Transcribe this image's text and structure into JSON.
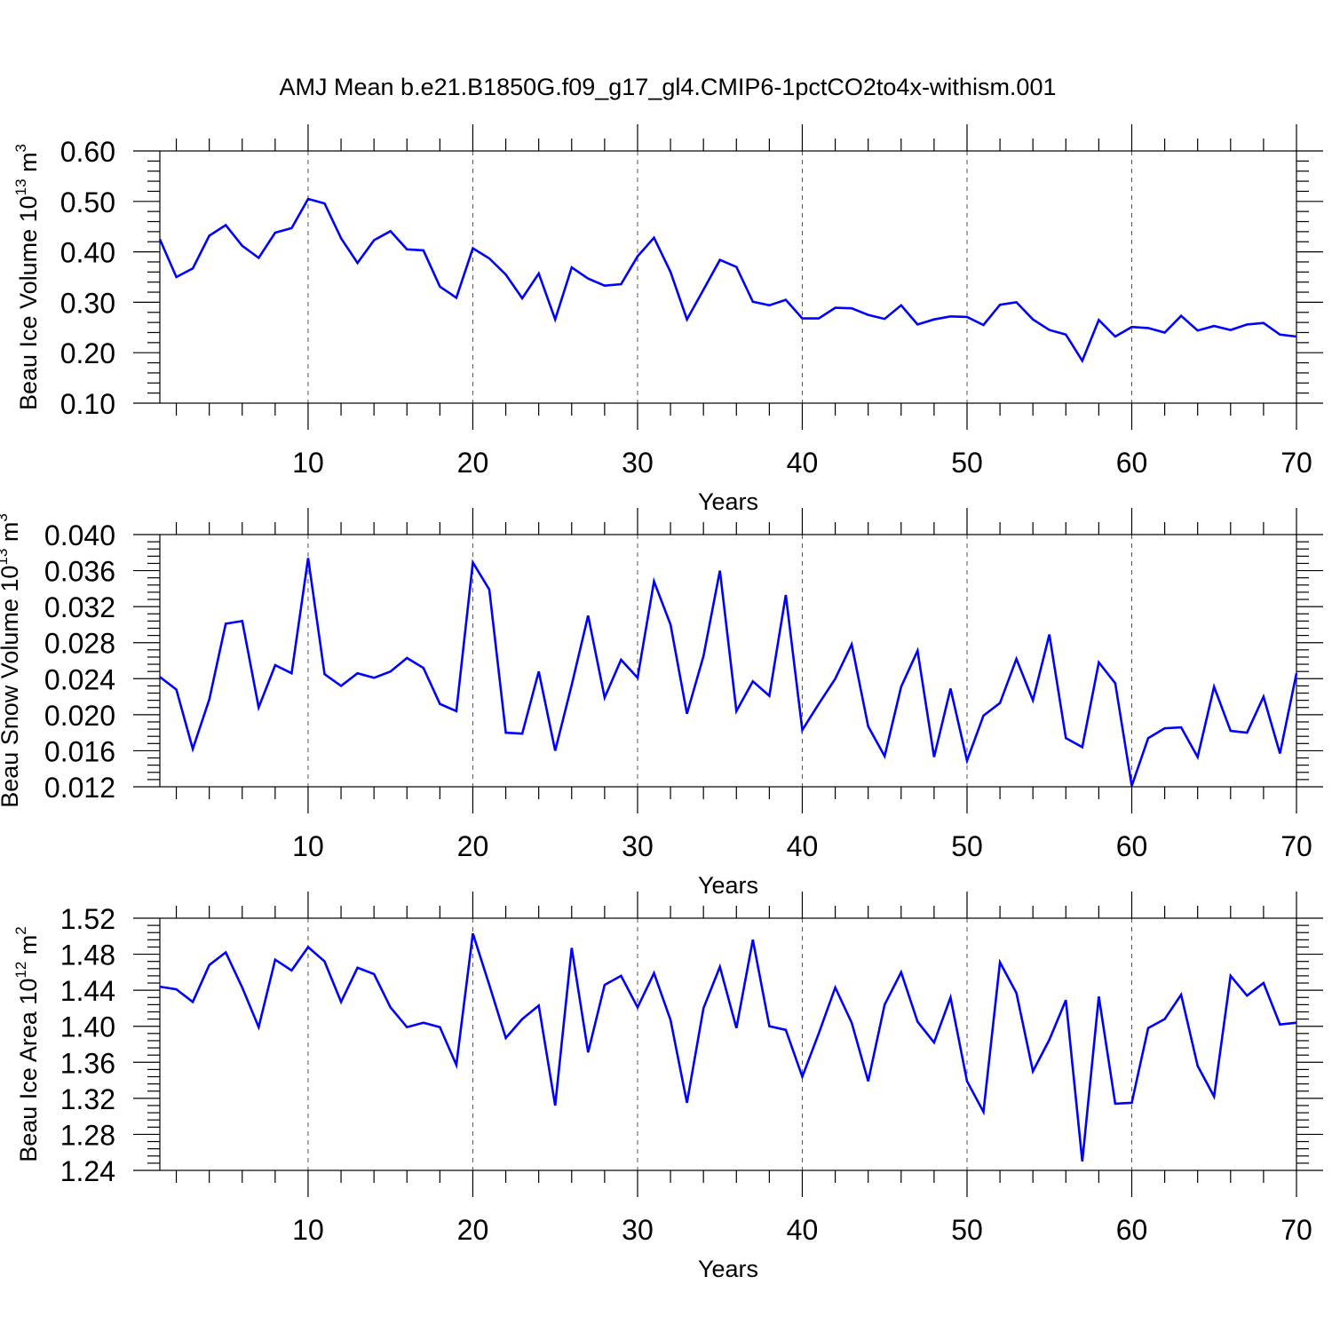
{
  "figure": {
    "title": "AMJ Mean b.e21.B1850G.f09_g17_gl4.CMIP6-1pctCO2to4x-withism.001"
  },
  "chart_data": [
    {
      "type": "line",
      "title": "",
      "xlabel": "Years",
      "ylabel": "Beau Ice Volume 10",
      "ylabel_exponent": "13",
      "ylabel_unit": "m",
      "ylabel_unit_exponent": "3",
      "xlim": [
        1,
        70
      ],
      "ylim": [
        0.1,
        0.6
      ],
      "x_ticks": [
        10,
        20,
        30,
        40,
        50,
        60,
        70
      ],
      "y_ticks": [
        "0.10",
        "0.20",
        "0.30",
        "0.40",
        "0.50",
        "0.60"
      ],
      "grid_x": [
        10,
        20,
        30,
        40,
        50,
        60
      ],
      "series": [
        {
          "name": "Beau Ice Volume",
          "color": "#0000ff",
          "x_start": 1,
          "values": [
            0.425,
            0.35,
            0.367,
            0.432,
            0.453,
            0.412,
            0.388,
            0.438,
            0.447,
            0.505,
            0.496,
            0.427,
            0.378,
            0.423,
            0.441,
            0.405,
            0.403,
            0.331,
            0.309,
            0.407,
            0.387,
            0.355,
            0.308,
            0.357,
            0.266,
            0.369,
            0.347,
            0.333,
            0.336,
            0.391,
            0.428,
            0.36,
            0.266,
            0.325,
            0.384,
            0.37,
            0.301,
            0.294,
            0.305,
            0.268,
            0.268,
            0.289,
            0.288,
            0.275,
            0.267,
            0.294,
            0.256,
            0.266,
            0.272,
            0.271,
            0.255,
            0.295,
            0.3,
            0.266,
            0.245,
            0.236,
            0.184,
            0.265,
            0.232,
            0.251,
            0.249,
            0.24,
            0.273,
            0.244,
            0.253,
            0.245,
            0.256,
            0.259,
            0.236,
            0.232
          ]
        }
      ]
    },
    {
      "type": "line",
      "title": "",
      "xlabel": "Years",
      "ylabel": "Beau Snow Volume 10",
      "ylabel_exponent": "13",
      "ylabel_unit": "m",
      "ylabel_unit_exponent": "3",
      "xlim": [
        1,
        70
      ],
      "ylim": [
        0.012,
        0.04
      ],
      "x_ticks": [
        10,
        20,
        30,
        40,
        50,
        60,
        70
      ],
      "y_ticks": [
        "0.012",
        "0.016",
        "0.020",
        "0.024",
        "0.028",
        "0.032",
        "0.036",
        "0.040"
      ],
      "grid_x": [
        10,
        20,
        30,
        40,
        50,
        60
      ],
      "series": [
        {
          "name": "Beau Snow Volume",
          "color": "#0000ff",
          "x_start": 1,
          "values": [
            0.0242,
            0.0228,
            0.0162,
            0.0217,
            0.0301,
            0.0304,
            0.0208,
            0.0255,
            0.0246,
            0.0374,
            0.0245,
            0.0232,
            0.0246,
            0.0241,
            0.0248,
            0.0263,
            0.0252,
            0.0212,
            0.0204,
            0.0369,
            0.0339,
            0.018,
            0.0179,
            0.0248,
            0.016,
            0.0233,
            0.031,
            0.0219,
            0.0261,
            0.0241,
            0.0348,
            0.03,
            0.0201,
            0.0265,
            0.036,
            0.0204,
            0.0237,
            0.0221,
            0.0333,
            0.0183,
            0.0212,
            0.024,
            0.0278,
            0.0187,
            0.0154,
            0.0231,
            0.0271,
            0.0153,
            0.0229,
            0.0149,
            0.0199,
            0.0213,
            0.0262,
            0.0216,
            0.0289,
            0.0174,
            0.0164,
            0.0258,
            0.0235,
            0.0121,
            0.0174,
            0.0185,
            0.0186,
            0.0153,
            0.0231,
            0.0182,
            0.018,
            0.022,
            0.0157,
            0.0246
          ]
        }
      ]
    },
    {
      "type": "line",
      "title": "",
      "xlabel": "Years",
      "ylabel": "Beau Ice Area 10",
      "ylabel_exponent": "12",
      "ylabel_unit": "m",
      "ylabel_unit_exponent": "2",
      "xlim": [
        1,
        70
      ],
      "ylim": [
        1.24,
        1.52
      ],
      "x_ticks": [
        10,
        20,
        30,
        40,
        50,
        60,
        70
      ],
      "y_ticks": [
        "1.24",
        "1.28",
        "1.32",
        "1.36",
        "1.40",
        "1.44",
        "1.48",
        "1.52"
      ],
      "grid_x": [
        10,
        20,
        30,
        40,
        50,
        60
      ],
      "series": [
        {
          "name": "Beau Ice Area",
          "color": "#0000ff",
          "x_start": 1,
          "values": [
            1.444,
            1.441,
            1.427,
            1.468,
            1.482,
            1.443,
            1.399,
            1.474,
            1.462,
            1.488,
            1.472,
            1.427,
            1.465,
            1.458,
            1.421,
            1.399,
            1.404,
            1.399,
            1.357,
            1.503,
            1.446,
            1.387,
            1.408,
            1.423,
            1.312,
            1.487,
            1.371,
            1.446,
            1.456,
            1.421,
            1.459,
            1.407,
            1.315,
            1.42,
            1.466,
            1.398,
            1.496,
            1.4,
            1.396,
            1.344,
            1.392,
            1.443,
            1.404,
            1.339,
            1.424,
            1.46,
            1.405,
            1.382,
            1.432,
            1.339,
            1.305,
            1.471,
            1.437,
            1.35,
            1.385,
            1.429,
            1.25,
            1.433,
            1.314,
            1.315,
            1.398,
            1.408,
            1.435,
            1.356,
            1.322,
            1.456,
            1.434,
            1.448,
            1.402,
            1.404
          ]
        }
      ]
    }
  ]
}
